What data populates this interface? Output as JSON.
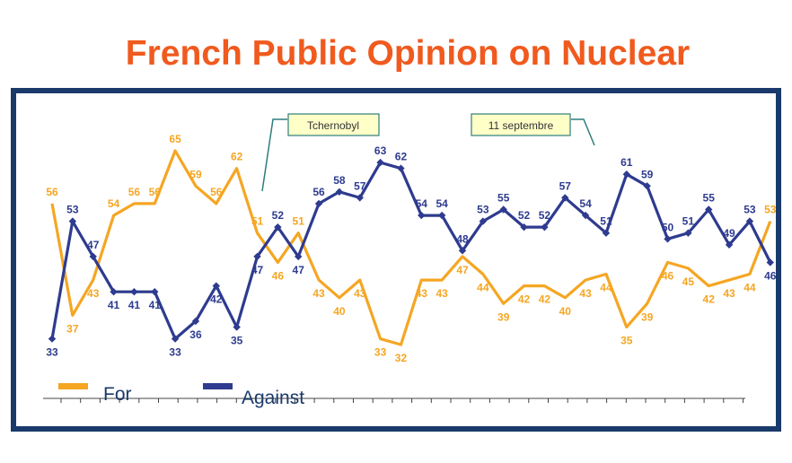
{
  "title": "French Public Opinion on Nuclear",
  "colors": {
    "title": "#f05a1e",
    "frame": "#1a3a6b",
    "for": "#f5a623",
    "against": "#2e3b8f",
    "annotation_bg": "#ffffc8",
    "annotation_border": "#2e7d7d"
  },
  "chart_data": {
    "type": "line",
    "title": "French Public Opinion on Nuclear",
    "xlabel": "",
    "ylabel": "",
    "grid": false,
    "legend_position": "bottom-left",
    "series": [
      {
        "name": "For",
        "color": "#f5a623",
        "values": [
          56,
          37,
          43,
          54,
          56,
          56,
          65,
          59,
          56,
          62,
          51,
          46,
          51,
          43,
          40,
          43,
          33,
          32,
          43,
          43,
          47,
          44,
          39,
          42,
          42,
          40,
          43,
          44,
          35,
          39,
          46,
          45,
          42,
          43,
          44,
          53
        ]
      },
      {
        "name": "Against",
        "color": "#2e3b8f",
        "values": [
          33,
          53,
          47,
          41,
          41,
          41,
          33,
          36,
          42,
          35,
          47,
          52,
          47,
          56,
          58,
          57,
          63,
          62,
          54,
          54,
          48,
          53,
          55,
          52,
          52,
          57,
          54,
          51,
          61,
          59,
          50,
          51,
          55,
          49,
          53,
          46
        ]
      }
    ],
    "annotations": [
      {
        "text": "Tchernobyl"
      },
      {
        "text": "11 septembre"
      }
    ]
  }
}
